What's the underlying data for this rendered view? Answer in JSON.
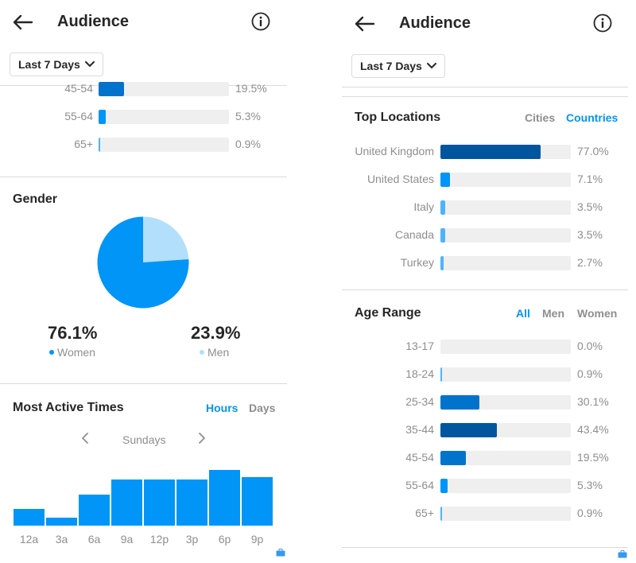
{
  "left": {
    "header": {
      "title": "Audience"
    },
    "date_range": {
      "label": "Last 7 Days"
    },
    "age_partial": [
      {
        "label": "45-54",
        "value": "19.5%",
        "pct": 19.5
      },
      {
        "label": "55-64",
        "value": "5.3%",
        "pct": 5.3
      },
      {
        "label": "65+",
        "value": "0.9%",
        "pct": 0.9
      }
    ],
    "gender": {
      "title": "Gender",
      "women": {
        "pct": "76.1%",
        "label": "Women",
        "value": 76.1,
        "color": "#0095f6"
      },
      "men": {
        "pct": "23.9%",
        "label": "Men",
        "value": 23.9,
        "color": "#b2dffc"
      }
    },
    "active_times": {
      "title": "Most Active Times",
      "tabs": [
        {
          "label": "Hours",
          "active": true
        },
        {
          "label": "Days",
          "active": false
        }
      ],
      "day": "Sundays",
      "bars": [
        {
          "label": "12a",
          "value": 20
        },
        {
          "label": "3a",
          "value": 10
        },
        {
          "label": "6a",
          "value": 38
        },
        {
          "label": "9a",
          "value": 56
        },
        {
          "label": "12p",
          "value": 56
        },
        {
          "label": "3p",
          "value": 56
        },
        {
          "label": "6p",
          "value": 68
        },
        {
          "label": "9p",
          "value": 59
        }
      ]
    }
  },
  "right": {
    "header": {
      "title": "Audience"
    },
    "date_range": {
      "label": "Last 7 Days"
    },
    "top_locations": {
      "title": "Top Locations",
      "tabs": [
        {
          "label": "Cities",
          "active": false
        },
        {
          "label": "Countries",
          "active": true
        }
      ],
      "items": [
        {
          "label": "United Kingdom",
          "value": "77.0%",
          "pct": 77.0
        },
        {
          "label": "United States",
          "value": "7.1%",
          "pct": 7.1
        },
        {
          "label": "Italy",
          "value": "3.5%",
          "pct": 3.5
        },
        {
          "label": "Canada",
          "value": "3.5%",
          "pct": 3.5
        },
        {
          "label": "Turkey",
          "value": "2.7%",
          "pct": 2.7
        }
      ]
    },
    "age_range": {
      "title": "Age Range",
      "tabs": [
        {
          "label": "All",
          "active": true
        },
        {
          "label": "Men",
          "active": false
        },
        {
          "label": "Women",
          "active": false
        }
      ],
      "items": [
        {
          "label": "13-17",
          "value": "0.0%",
          "pct": 0.0
        },
        {
          "label": "18-24",
          "value": "0.9%",
          "pct": 0.9
        },
        {
          "label": "25-34",
          "value": "30.1%",
          "pct": 30.1
        },
        {
          "label": "35-44",
          "value": "43.4%",
          "pct": 43.4
        },
        {
          "label": "45-54",
          "value": "19.5%",
          "pct": 19.5
        },
        {
          "label": "55-64",
          "value": "5.3%",
          "pct": 5.3
        },
        {
          "label": "65+",
          "value": "0.9%",
          "pct": 0.9
        }
      ]
    }
  },
  "colors": {
    "accent": "#0095f6",
    "dark_bar": "#00569e",
    "mid_bar": "#0074cc",
    "light_bar": "#0095f6",
    "pale_bar": "#4fb3f7",
    "track": "#efefef",
    "men": "#b2dffc"
  },
  "icons": {
    "back": "arrow-left-icon",
    "info": "info-circle-icon",
    "chevron": "chevron-down-icon",
    "prev": "chevron-left-icon",
    "next": "chevron-right-icon",
    "corner": "briefcase-icon"
  }
}
